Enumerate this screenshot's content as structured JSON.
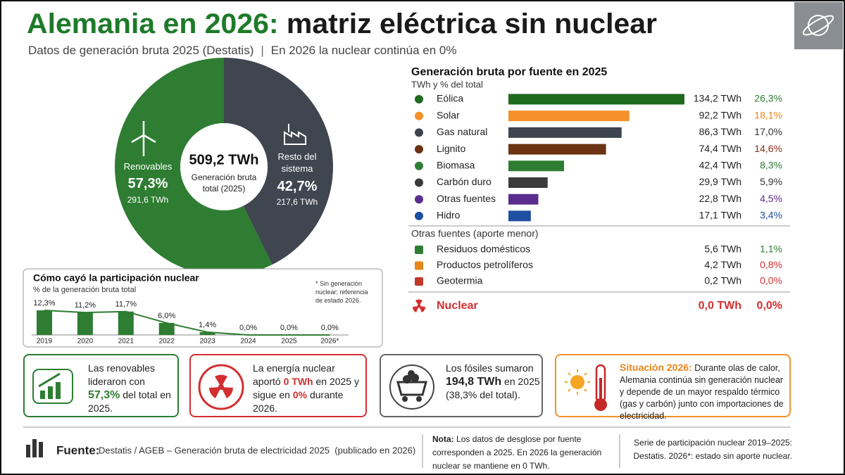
{
  "header": {
    "title": [
      "Alemania en 2026:",
      "matriz eléctrica sin nuclear"
    ],
    "subtitle": [
      "Datos de generación bruta 2025 (Destatis)",
      "En 2026 la nuclear continúa en 0%"
    ]
  },
  "chart_data": [
    {
      "type": "donut",
      "center_value": "509,2 TWh",
      "center_label": "Generación bruta total (2025)",
      "categories": [
        "Renovables",
        "Resto del sistema"
      ],
      "values": [
        57.3,
        42.7
      ],
      "value_labels": [
        "57,3%",
        "42,7%"
      ],
      "sub_labels": [
        "291,6 TWh",
        "217,6 TWh"
      ],
      "colors": [
        "#2e7d32",
        "#3f4650"
      ]
    },
    {
      "type": "hbar",
      "title": "Generación bruta por fuente en 2025",
      "subtitle": "TWh y % del total",
      "categories": [
        "Eólica",
        "Solar",
        "Gas natural",
        "Lignito",
        "Biomasa",
        "Carbón duro",
        "Otras fuentes",
        "Hidro"
      ],
      "values": [
        134.2,
        92.2,
        86.3,
        74.4,
        42.4,
        29.9,
        22.8,
        17.1
      ],
      "value_labels": [
        "134,2 TWh",
        "92,2 TWh",
        "86,3 TWh",
        "74,4 TWh",
        "42,4 TWh",
        "29,9 TWh",
        "22,8 TWh",
        "17,1 TWh"
      ],
      "shares": [
        26.3,
        18.1,
        17.0,
        14.6,
        8.3,
        5.9,
        4.5,
        3.4
      ],
      "share_labels": [
        "26,3%",
        "18,1%",
        "17,0%",
        "14,6%",
        "8,3%",
        "5,9%",
        "4,5%",
        "3,4%"
      ],
      "colors": [
        "#1e6b1e",
        "#f5912a",
        "#3d4450",
        "#6b3312",
        "#2e7d32",
        "#3a3a3a",
        "#5b2d8e",
        "#1f4fa0"
      ],
      "share_colors": [
        "#2e7d32",
        "#e8851a",
        "#333333",
        "#8b2e1a",
        "#2e7d32",
        "#333333",
        "#5b2d8e",
        "#1f4fa0"
      ]
    },
    {
      "type": "bar",
      "title": "Cómo cayó la participación nuclear",
      "subtitle": "% de la generación bruta total",
      "note": "* Sin generación nuclear; referencia de estado 2026.",
      "categories": [
        "2019",
        "2020",
        "2021",
        "2022",
        "2023",
        "2024",
        "2025",
        "2026*"
      ],
      "values": [
        12.3,
        11.2,
        11.7,
        6.0,
        1.4,
        0.0,
        0.0,
        0.0
      ],
      "value_labels": [
        "12,3%",
        "11,2%",
        "11,7%",
        "6,0%",
        "1,4%",
        "0,0%",
        "0,0%",
        "0,0%"
      ],
      "color": "#2e7d32",
      "line": true
    }
  ],
  "minor_sources": {
    "title": "Otras fuentes (aporte menor)",
    "rows": [
      [
        "Residuos domésticos",
        "5,6 TWh",
        "1,1%"
      ],
      [
        "Productos petrolíferos",
        "4,2 TWh",
        "0,8%"
      ],
      [
        "Geotermia",
        "0,2 TWh",
        "0,0%"
      ]
    ],
    "colors": [
      "#2e7d32",
      "#e8851a",
      "#c0392b"
    ],
    "share_colors": [
      "#2e7d32",
      "#d32f2f",
      "#d32f2f"
    ]
  },
  "nuclear_row": [
    "Nuclear",
    "0,0 TWh",
    "0,0%"
  ],
  "cards": [
    [
      "Las renovables lideraron con",
      "57,3%",
      "del total en 2025."
    ],
    [
      "La energía nuclear aportó",
      "0 TWh",
      "en 2025 y sigue en",
      "0%",
      "durante 2026."
    ],
    [
      "Los fósiles sumaron",
      "194,8 TWh",
      "en 2025",
      "(38,3% del total)."
    ],
    [
      "Situación 2026:",
      "Durante olas de calor, Alemania continúa sin generación nuclear y depende de un mayor respaldo térmico (gas y carbón) junto con importaciones de electricidad."
    ]
  ],
  "footer": {
    "source_label": "Fuente:",
    "source": "Destatis / AGEB – Generación bruta de electricidad 2025  (publicado en 2026)",
    "note_label": "Nota:",
    "note": "Los datos de desglose por fuente corresponden a 2025. En 2026 la generación nuclear se mantiene en 0 TWh.",
    "series_note": "Serie de participación nuclear 2019–2025: Destatis. 2026*: estado sin aporte nuclear."
  }
}
